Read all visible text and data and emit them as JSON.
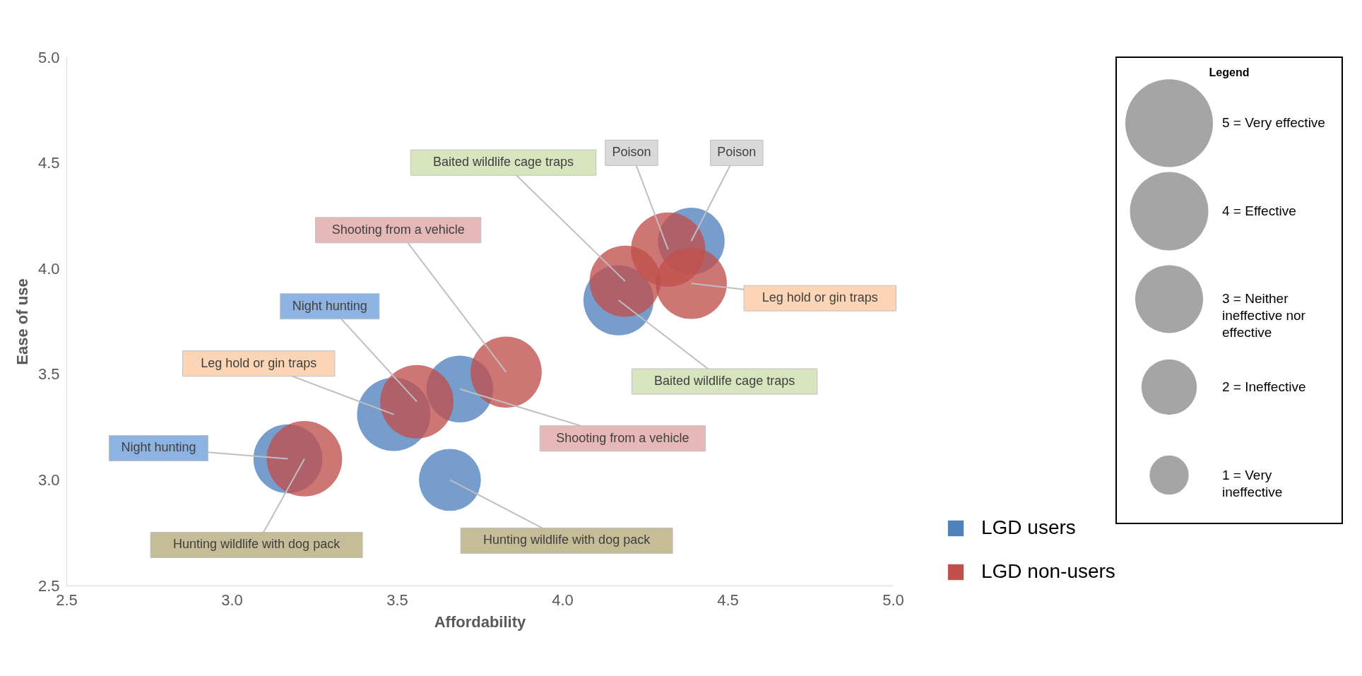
{
  "chart_data": {
    "type": "bubble",
    "xlabel": "Affordability",
    "ylabel": "Ease of use",
    "legend_title": "Legend",
    "xlim": [
      2.5,
      5
    ],
    "xticks": [
      2.5,
      {
        "value": 3,
        "label": "3.0"
      },
      3.5,
      {
        "value": 4,
        "label": "4.0"
      },
      4.5,
      {
        "value": 5,
        "label": "5.0"
      }
    ],
    "ylim": [
      2.5,
      5
    ],
    "yticks": [
      2.5,
      {
        "value": 3,
        "label": "3.0"
      },
      3.5,
      {
        "value": 4,
        "label": "4.0"
      },
      4.5,
      {
        "value": 5,
        "label": "5.0"
      }
    ],
    "grid": false,
    "legend": "bottom right",
    "marker": "circle",
    "size_legend": [
      {
        "value": 5,
        "label": "5 = Very effective"
      },
      {
        "value": 4,
        "label": "4 = Effective"
      },
      {
        "value": 3,
        "label": "3 = Neither ineffective nor effective"
      },
      {
        "value": 2,
        "label": "2 = Ineffective"
      },
      {
        "value": 1,
        "label": "1 = Very ineffective"
      }
    ],
    "series": [
      {
        "name": "LGD users",
        "color": "#4f81bd",
        "x": [
          3.17,
          3.49,
          3.69,
          3.66,
          4.17,
          4.39
        ],
        "values": [
          3.1,
          3.31,
          3.43,
          3.0,
          3.85,
          4.13
        ],
        "sizes": [
          3.1,
          3.5,
          2.9,
          2.5,
          3.2,
          2.9
        ]
      },
      {
        "name": "LGD non-users",
        "color": "#c0504d",
        "x": [
          3.22,
          3.56,
          3.83,
          4.19,
          4.32,
          4.39
        ],
        "values": [
          3.1,
          3.37,
          3.51,
          3.94,
          4.09,
          3.93
        ],
        "sizes": [
          3.7,
          3.5,
          3.3,
          3.3,
          3.6,
          3.3
        ]
      }
    ],
    "annotations": [
      {
        "text": "Night hunting",
        "x": 3.17,
        "y": 3.1
      },
      {
        "text": "Hunting wildlife with dog pack",
        "x": 3.22,
        "y": 3.1
      },
      {
        "text": "Leg hold or gin traps",
        "x": 3.49,
        "y": 3.31
      },
      {
        "text": "Night hunting",
        "x": 3.56,
        "y": 3.37
      },
      {
        "text": "Shooting from a vehicle",
        "x": 3.69,
        "y": 3.43
      },
      {
        "text": "Shooting from a vehicle",
        "x": 3.83,
        "y": 3.51
      },
      {
        "text": "Hunting wildlife with dog pack",
        "x": 3.66,
        "y": 3.0
      },
      {
        "text": "Baited wildlife cage traps",
        "x": 4.19,
        "y": 3.94
      },
      {
        "text": "Baited wildlife cage traps",
        "x": 4.17,
        "y": 3.85
      },
      {
        "text": "Poison",
        "x": 4.32,
        "y": 4.09
      },
      {
        "text": "Poison",
        "x": 4.39,
        "y": 4.13
      },
      {
        "text": "Leg hold or gin traps",
        "x": 4.39,
        "y": 3.93
      }
    ]
  }
}
